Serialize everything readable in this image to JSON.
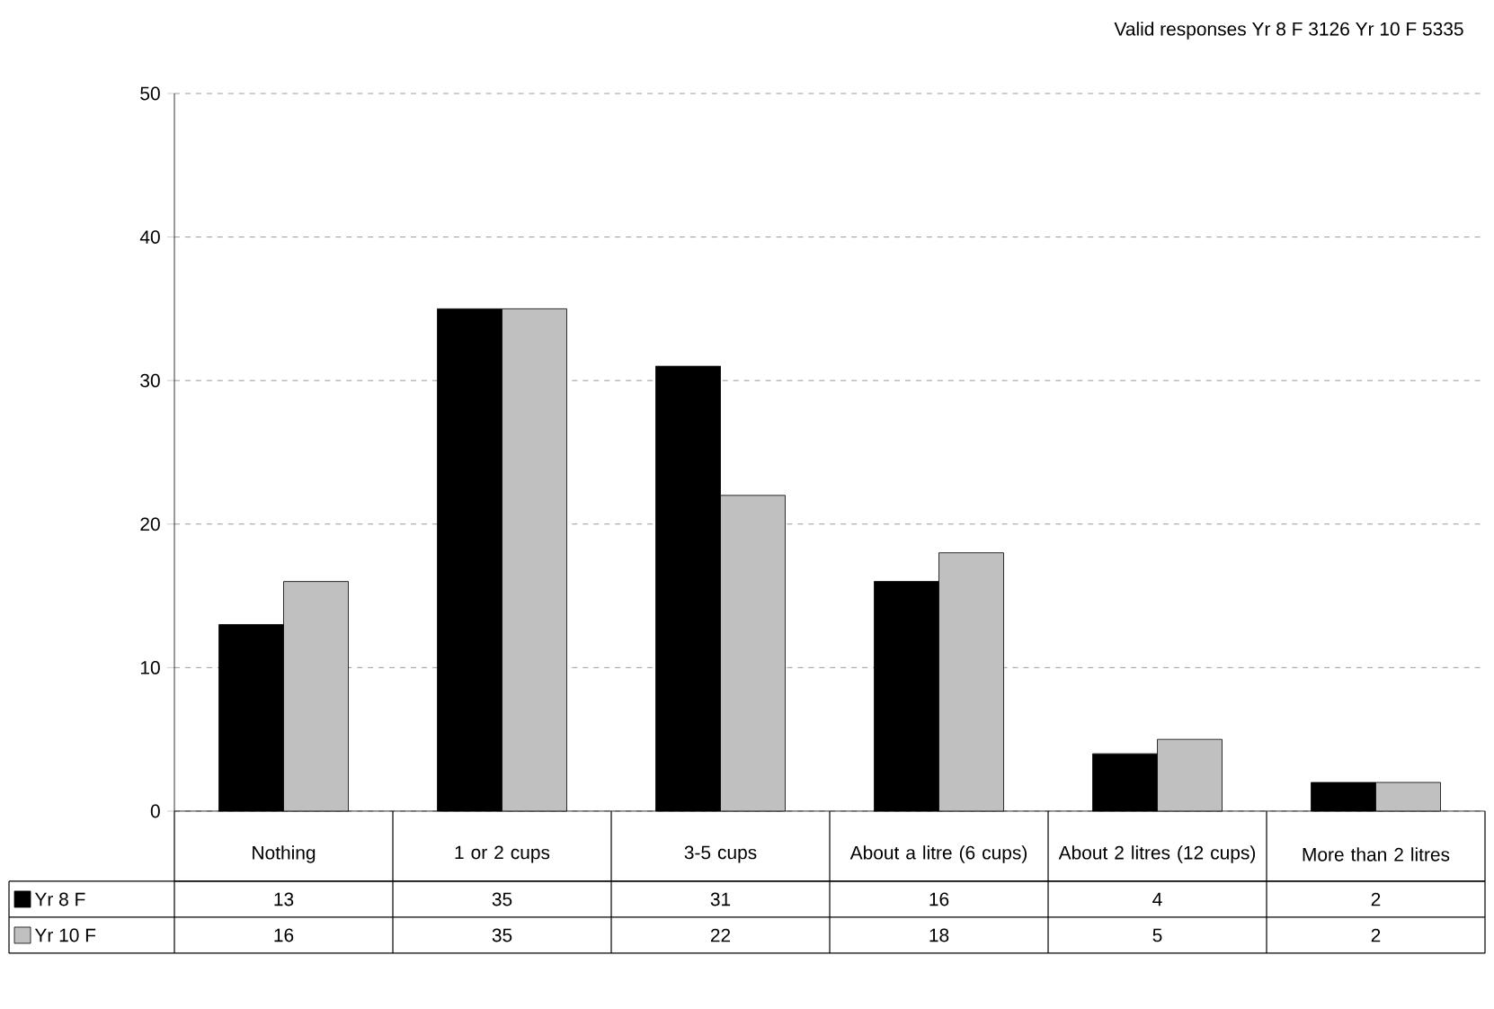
{
  "chart_data": {
    "type": "bar",
    "title": "Valid responses  Yr 8 F 3126 Yr 10 F 5335",
    "categories": [
      "Nothing",
      "1 or 2 cups",
      "3-5 cups",
      "About a litre (6 cups)",
      "About 2 litres (12 cups)",
      "More than 2 litres"
    ],
    "series": [
      {
        "name": "Yr 8 F",
        "color": "#000000",
        "values": [
          13,
          35,
          31,
          16,
          4,
          2
        ]
      },
      {
        "name": "Yr 10 F",
        "color": "#c0c0c0",
        "values": [
          16,
          35,
          22,
          18,
          5,
          2
        ]
      }
    ],
    "ylim": [
      0,
      50
    ],
    "yticks": [
      0,
      10,
      20,
      30,
      40,
      50
    ],
    "grid": "y",
    "legend": "bottom left",
    "data_labels": true
  }
}
